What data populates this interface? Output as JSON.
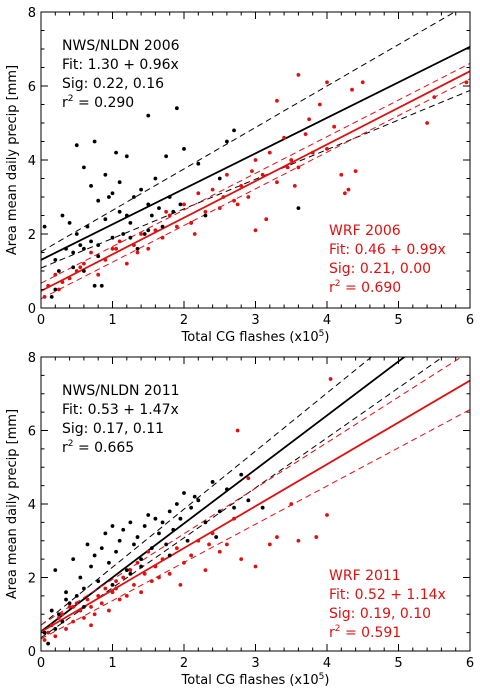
{
  "chart_data": [
    {
      "type": "scatter",
      "xlabel": "Total CG flashes (x10",
      "xlabel_sup": "5",
      "xlabel_end": ")",
      "ylabel": "Area mean daily precip [mm]",
      "xlim": [
        0,
        6
      ],
      "ylim": [
        0,
        8
      ],
      "xticks": [
        "0",
        "1",
        "2",
        "3",
        "4",
        "5",
        "6"
      ],
      "yticks": [
        "0",
        "2",
        "4",
        "6",
        "8"
      ],
      "grid": false,
      "annotations": {
        "obs": {
          "title": "NWS/NLDN 2006",
          "fit": "Fit: 1.30 + 0.96x",
          "sig": "Sig: 0.22,    0.16",
          "r2_prefix": "r",
          "r2_sup": "2",
          "r2_value": " = 0.290",
          "color": "#000000"
        },
        "model": {
          "title": "WRF 2006",
          "fit": "Fit: 0.46 + 0.99x",
          "sig": "Sig: 0.21,    0.00",
          "r2_prefix": "r",
          "r2_sup": "2",
          "r2_value": " = 0.690",
          "color": "#e01010"
        }
      },
      "series": [
        {
          "color": "#000000",
          "fit": {
            "intercept": 1.3,
            "slope": 0.96,
            "sig_intercept": 0.22,
            "sig_slope": 0.16
          },
          "x": [
            0.05,
            0.15,
            0.2,
            0.25,
            0.3,
            0.35,
            0.4,
            0.45,
            0.5,
            0.5,
            0.55,
            0.6,
            0.6,
            0.65,
            0.7,
            0.7,
            0.75,
            0.75,
            0.8,
            0.8,
            0.85,
            0.9,
            0.9,
            0.95,
            1.0,
            1.0,
            1.05,
            1.1,
            1.1,
            1.15,
            1.2,
            1.2,
            1.25,
            1.3,
            1.35,
            1.4,
            1.45,
            1.5,
            1.5,
            1.55,
            1.6,
            1.65,
            1.7,
            1.75,
            1.8,
            1.85,
            1.9,
            1.95,
            2.0,
            2.1,
            2.2,
            2.3,
            2.5,
            2.6,
            2.7,
            0.6,
            1.25,
            0.8,
            0.45,
            1.5,
            3.6,
            0.2
          ],
          "y": [
            2.2,
            0.3,
            1.3,
            1.0,
            2.5,
            1.6,
            2.3,
            1.1,
            4.4,
            2.0,
            1.7,
            3.8,
            1.0,
            2.2,
            1.8,
            3.3,
            4.5,
            0.6,
            2.9,
            1.7,
            0.6,
            3.6,
            2.4,
            3.0,
            1.9,
            3.1,
            4.2,
            2.6,
            3.4,
            2.0,
            4.1,
            2.5,
            2.3,
            3.0,
            1.6,
            3.2,
            2.0,
            2.8,
            5.2,
            2.5,
            3.5,
            2.7,
            2.2,
            4.1,
            3.0,
            2.6,
            5.4,
            2.8,
            4.3,
            2.3,
            3.9,
            2.5,
            3.5,
            4.5,
            4.8,
            1.6,
            1.9,
            1.4,
            1.5,
            2.1,
            2.7,
            0.5
          ]
        },
        {
          "color": "#e01010",
          "fit": {
            "intercept": 0.46,
            "slope": 0.99,
            "sig_intercept": 0.21,
            "sig_slope": 0.0
          },
          "x": [
            0.05,
            0.1,
            0.2,
            0.3,
            0.4,
            0.5,
            0.6,
            0.7,
            0.8,
            0.9,
            1.0,
            1.1,
            1.2,
            1.3,
            1.4,
            1.5,
            1.6,
            1.7,
            1.8,
            1.9,
            2.0,
            2.1,
            2.2,
            2.3,
            2.4,
            2.5,
            2.6,
            2.7,
            2.8,
            2.9,
            3.0,
            3.1,
            3.2,
            3.3,
            3.3,
            3.4,
            3.5,
            3.6,
            3.6,
            3.7,
            3.8,
            3.9,
            4.0,
            4.0,
            4.1,
            4.2,
            4.3,
            4.4,
            4.5,
            5.4,
            5.5,
            5.95,
            0.25,
            0.55,
            1.05,
            1.35,
            1.75,
            2.15,
            2.55,
            2.95,
            3.15,
            3.45,
            3.75,
            4.35,
            4.25,
            3.0,
            2.75,
            3.55
          ],
          "y": [
            0.3,
            0.6,
            0.9,
            0.7,
            0.8,
            1.0,
            1.2,
            1.5,
            0.9,
            1.3,
            1.6,
            1.8,
            1.2,
            1.7,
            2.0,
            1.6,
            2.1,
            1.9,
            2.5,
            2.2,
            2.8,
            2.3,
            3.1,
            2.6,
            3.2,
            2.7,
            3.6,
            2.9,
            3.3,
            3.0,
            4.0,
            3.6,
            4.2,
            5.6,
            3.4,
            4.6,
            4.0,
            6.3,
            3.8,
            4.7,
            4.2,
            5.5,
            4.3,
            6.1,
            4.9,
            3.6,
            3.2,
            3.7,
            6.1,
            5.0,
            5.7,
            6.1,
            0.5,
            1.1,
            1.6,
            1.5,
            2.6,
            2.0,
            3.0,
            3.7,
            2.4,
            3.8,
            5.1,
            5.9,
            3.1,
            2.1,
            2.8,
            3.3
          ]
        }
      ]
    },
    {
      "type": "scatter",
      "xlabel": "Total CG flashes (x10",
      "xlabel_sup": "5",
      "xlabel_end": ")",
      "ylabel": "Area mean daily precip [mm]",
      "xlim": [
        0,
        6
      ],
      "ylim": [
        0,
        8
      ],
      "xticks": [
        "0",
        "1",
        "2",
        "3",
        "4",
        "5",
        "6"
      ],
      "yticks": [
        "0",
        "2",
        "4",
        "6",
        "8"
      ],
      "grid": false,
      "annotations": {
        "obs": {
          "title": "NWS/NLDN 2011",
          "fit": "Fit: 0.53 + 1.47x",
          "sig": "Sig: 0.17,    0.11",
          "r2_prefix": "r",
          "r2_sup": "2",
          "r2_value": " = 0.665",
          "color": "#000000"
        },
        "model": {
          "title": "WRF 2011",
          "fit": "Fit: 0.52 + 1.14x",
          "sig": "Sig: 0.19,    0.10",
          "r2_prefix": "r",
          "r2_sup": "2",
          "r2_value": " = 0.591",
          "color": "#e01010"
        }
      },
      "series": [
        {
          "color": "#000000",
          "fit": {
            "intercept": 0.53,
            "slope": 1.47,
            "sig_intercept": 0.17,
            "sig_slope": 0.11
          },
          "x": [
            0.05,
            0.1,
            0.15,
            0.2,
            0.25,
            0.3,
            0.35,
            0.4,
            0.45,
            0.5,
            0.55,
            0.6,
            0.65,
            0.7,
            0.75,
            0.8,
            0.85,
            0.9,
            0.95,
            1.0,
            1.05,
            1.1,
            1.15,
            1.2,
            1.25,
            1.3,
            1.35,
            1.4,
            1.45,
            1.5,
            1.55,
            1.6,
            1.65,
            1.7,
            1.75,
            1.8,
            1.85,
            1.9,
            1.95,
            2.0,
            2.05,
            2.1,
            2.2,
            2.3,
            2.4,
            2.5,
            2.6,
            2.7,
            2.8,
            2.9,
            3.1,
            0.2,
            0.6,
            1.0,
            1.4,
            1.8,
            2.15,
            2.45,
            0.35,
            1.25
          ],
          "y": [
            0.5,
            0.2,
            1.1,
            2.2,
            1.0,
            0.8,
            1.6,
            1.3,
            2.5,
            1.5,
            2.0,
            1.7,
            2.9,
            2.3,
            2.6,
            1.9,
            2.8,
            3.2,
            2.4,
            3.4,
            2.7,
            3.0,
            3.3,
            2.2,
            3.5,
            2.9,
            3.1,
            2.5,
            3.4,
            3.7,
            2.8,
            3.6,
            3.2,
            3.5,
            2.9,
            3.8,
            3.3,
            4.0,
            3.6,
            4.3,
            3.0,
            3.9,
            4.1,
            3.5,
            4.6,
            3.8,
            4.4,
            3.9,
            4.8,
            4.1,
            3.9,
            0.6,
            1.2,
            1.8,
            2.3,
            2.6,
            4.2,
            3.1,
            1.4,
            2.1
          ]
        },
        {
          "color": "#e01010",
          "fit": {
            "intercept": 0.52,
            "slope": 1.14,
            "sig_intercept": 0.19,
            "sig_slope": 0.1
          },
          "x": [
            0.05,
            0.1,
            0.15,
            0.2,
            0.25,
            0.3,
            0.35,
            0.4,
            0.45,
            0.5,
            0.55,
            0.6,
            0.65,
            0.7,
            0.75,
            0.8,
            0.85,
            0.9,
            0.95,
            1.0,
            1.05,
            1.1,
            1.15,
            1.2,
            1.25,
            1.3,
            1.35,
            1.4,
            1.45,
            1.5,
            1.55,
            1.6,
            1.7,
            1.8,
            1.9,
            2.0,
            2.1,
            2.2,
            2.3,
            2.4,
            2.5,
            2.6,
            2.7,
            2.8,
            2.9,
            3.0,
            3.2,
            3.3,
            3.5,
            3.6,
            4.0,
            4.05,
            2.75,
            2.35,
            1.95,
            1.65,
            1.05,
            0.7,
            0.45,
            3.85
          ],
          "y": [
            0.3,
            0.5,
            0.7,
            0.4,
            0.9,
            1.0,
            0.6,
            1.2,
            0.8,
            1.3,
            1.1,
            0.9,
            1.4,
            1.2,
            1.0,
            1.5,
            1.3,
            1.7,
            1.1,
            1.6,
            1.9,
            1.4,
            2.0,
            1.5,
            2.2,
            1.8,
            2.4,
            1.6,
            2.1,
            2.7,
            1.9,
            2.3,
            2.5,
            2.1,
            2.8,
            2.4,
            2.6,
            3.0,
            2.2,
            3.2,
            2.7,
            2.9,
            3.6,
            2.5,
            4.7,
            2.3,
            2.9,
            3.1,
            4.0,
            3.0,
            3.7,
            7.4,
            6.0,
            2.9,
            1.8,
            2.0,
            1.7,
            0.7,
            1.2,
            3.1
          ]
        }
      ]
    }
  ]
}
